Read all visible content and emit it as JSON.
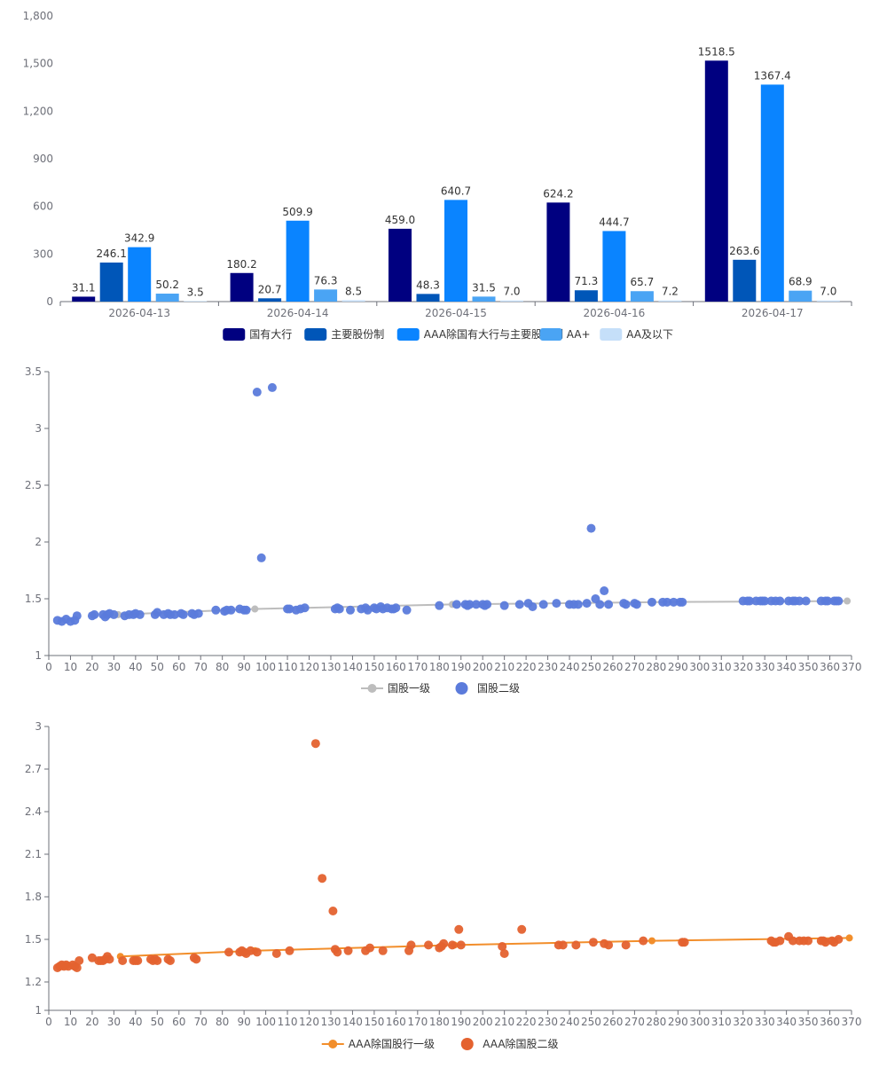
{
  "chart_data": [
    {
      "type": "bar",
      "title": "",
      "categories": [
        "2026-04-13",
        "2026-04-14",
        "2026-04-15",
        "2026-04-16",
        "2026-04-17"
      ],
      "ylim": [
        0,
        1800
      ],
      "yticks": [
        0,
        300,
        600,
        900,
        1200,
        1500,
        1800
      ],
      "ytick_labels": [
        "0",
        "300",
        "600",
        "900",
        "1,200",
        "1,500",
        "1,800"
      ],
      "legend_position": "bottom",
      "series": [
        {
          "name": "国有大行",
          "color": "#000080",
          "values": [
            31.1,
            180.2,
            459.0,
            624.2,
            1518.5
          ],
          "labels": [
            "31.1",
            "180.2",
            "459.0",
            "624.2",
            "1518.5"
          ]
        },
        {
          "name": "主要股份制",
          "color": "#0056b8",
          "values": [
            246.1,
            20.7,
            48.3,
            71.3,
            263.6
          ],
          "labels": [
            "246.1",
            "20.7",
            "48.3",
            "71.3",
            "263.6"
          ]
        },
        {
          "name": "AAA除国有大行与主要股份制",
          "color": "#0a84ff",
          "values": [
            342.9,
            509.9,
            640.7,
            444.7,
            1367.4
          ],
          "labels": [
            "342.9",
            "509.9",
            "640.7",
            "444.7",
            "1367.4"
          ]
        },
        {
          "name": "AA+",
          "color": "#4aa4f4",
          "values": [
            50.2,
            76.3,
            31.5,
            65.7,
            68.9
          ],
          "labels": [
            "50.2",
            "76.3",
            "31.5",
            "65.7",
            "68.9"
          ]
        },
        {
          "name": "AA及以下",
          "color": "#c5dff9",
          "values": [
            3.5,
            8.5,
            7.0,
            7.2,
            7.0
          ],
          "labels": [
            "3.5",
            "8.5",
            "7.0",
            "7.2",
            "7.0"
          ]
        }
      ]
    },
    {
      "type": "scatter",
      "xlim": [
        0,
        370
      ],
      "ylim": [
        1,
        3.5
      ],
      "xticks": [
        0,
        10,
        20,
        30,
        40,
        50,
        60,
        70,
        80,
        90,
        100,
        110,
        120,
        130,
        140,
        150,
        160,
        170,
        180,
        190,
        200,
        210,
        220,
        230,
        240,
        250,
        260,
        270,
        280,
        290,
        300,
        310,
        320,
        330,
        340,
        350,
        360,
        370
      ],
      "yticks": [
        1,
        1.5,
        2,
        2.5,
        3,
        3.5
      ],
      "ytick_labels": [
        "1",
        "1.5",
        "2",
        "2.5",
        "3",
        "3.5"
      ],
      "legend_position": "bottom",
      "series": [
        {
          "name": "国股一级",
          "kind": "line",
          "color": "#bdbdbd",
          "x": [
            32,
            95,
            186,
            278,
            368
          ],
          "y": [
            1.36,
            1.41,
            1.45,
            1.47,
            1.48
          ]
        },
        {
          "name": "国股二级",
          "kind": "scatter",
          "color": "#5b7bdb",
          "x": [
            4,
            6,
            8,
            10,
            12,
            13,
            20,
            21,
            25,
            26,
            27,
            28,
            30,
            35,
            37,
            39,
            40,
            42,
            49,
            50,
            53,
            55,
            56,
            58,
            61,
            62,
            66,
            67,
            69,
            77,
            81,
            82,
            84,
            88,
            90,
            91,
            96,
            98,
            103,
            110,
            111,
            114,
            116,
            118,
            132,
            133,
            134,
            139,
            144,
            146,
            147,
            150,
            151,
            153,
            154,
            156,
            158,
            159,
            160,
            165,
            180,
            188,
            192,
            193,
            194,
            197,
            200,
            201,
            202,
            210,
            217,
            221,
            223,
            228,
            234,
            240,
            242,
            244,
            248,
            250,
            252,
            254,
            256,
            258,
            265,
            266,
            270,
            271,
            278,
            283,
            285,
            288,
            291,
            292,
            320,
            322,
            323,
            326,
            328,
            329,
            330,
            333,
            335,
            337,
            341,
            343,
            344,
            346,
            349,
            356,
            358,
            359,
            362,
            363,
            364
          ],
          "y": [
            1.31,
            1.3,
            1.32,
            1.3,
            1.31,
            1.35,
            1.35,
            1.36,
            1.36,
            1.34,
            1.36,
            1.37,
            1.36,
            1.35,
            1.36,
            1.36,
            1.37,
            1.36,
            1.36,
            1.38,
            1.36,
            1.37,
            1.36,
            1.36,
            1.37,
            1.36,
            1.37,
            1.36,
            1.37,
            1.4,
            1.39,
            1.4,
            1.4,
            1.41,
            1.4,
            1.4,
            3.32,
            1.86,
            3.36,
            1.41,
            1.41,
            1.4,
            1.41,
            1.42,
            1.41,
            1.42,
            1.41,
            1.4,
            1.41,
            1.42,
            1.4,
            1.42,
            1.41,
            1.43,
            1.41,
            1.42,
            1.41,
            1.41,
            1.42,
            1.4,
            1.44,
            1.45,
            1.45,
            1.44,
            1.45,
            1.45,
            1.45,
            1.44,
            1.45,
            1.44,
            1.45,
            1.46,
            1.43,
            1.45,
            1.46,
            1.45,
            1.45,
            1.45,
            1.46,
            2.12,
            1.5,
            1.45,
            1.57,
            1.45,
            1.46,
            1.45,
            1.46,
            1.45,
            1.47,
            1.47,
            1.47,
            1.47,
            1.47,
            1.47,
            1.48,
            1.48,
            1.48,
            1.48,
            1.48,
            1.48,
            1.48,
            1.48,
            1.48,
            1.48,
            1.48,
            1.48,
            1.48,
            1.48,
            1.48,
            1.48,
            1.48,
            1.48,
            1.48,
            1.48,
            1.48
          ]
        }
      ]
    },
    {
      "type": "scatter",
      "xlim": [
        0,
        370
      ],
      "ylim": [
        1,
        3
      ],
      "xticks": [
        0,
        10,
        20,
        30,
        40,
        50,
        60,
        70,
        80,
        90,
        100,
        110,
        120,
        130,
        140,
        150,
        160,
        170,
        180,
        190,
        200,
        210,
        220,
        230,
        240,
        250,
        260,
        270,
        280,
        290,
        300,
        310,
        320,
        330,
        340,
        350,
        360,
        370
      ],
      "yticks": [
        1,
        1.2,
        1.5,
        1.8,
        2.1,
        2.4,
        2.7,
        3
      ],
      "ytick_labels": [
        "1",
        "1.2",
        "1.5",
        "1.8",
        "2.1",
        "2.4",
        "2.7",
        "3"
      ],
      "legend_position": "bottom",
      "series": [
        {
          "name": "AAA除国股行一级",
          "kind": "line",
          "color": "#f28e2b",
          "x": [
            33,
            95,
            187,
            278,
            369
          ],
          "y": [
            1.38,
            1.42,
            1.46,
            1.49,
            1.51
          ]
        },
        {
          "name": "AAA除国股二级",
          "kind": "scatter",
          "color": "#e4622f",
          "x": [
            4,
            5,
            6,
            7,
            8,
            9,
            11,
            12,
            13,
            14,
            20,
            23,
            24,
            25,
            26,
            27,
            28,
            34,
            39,
            40,
            41,
            47,
            48,
            49,
            50,
            55,
            56,
            67,
            68,
            83,
            88,
            89,
            90,
            91,
            93,
            96,
            105,
            111,
            123,
            126,
            131,
            132,
            133,
            138,
            146,
            148,
            154,
            166,
            167,
            175,
            180,
            181,
            182,
            186,
            189,
            190,
            209,
            210,
            218,
            235,
            237,
            243,
            251,
            256,
            258,
            266,
            274,
            292,
            293,
            333,
            334,
            335,
            337,
            341,
            343,
            346,
            348,
            350,
            356,
            357,
            358,
            361,
            362,
            364
          ],
          "y": [
            1.3,
            1.31,
            1.32,
            1.31,
            1.32,
            1.31,
            1.32,
            1.31,
            1.3,
            1.35,
            1.37,
            1.35,
            1.35,
            1.35,
            1.36,
            1.38,
            1.36,
            1.35,
            1.35,
            1.35,
            1.35,
            1.36,
            1.35,
            1.36,
            1.35,
            1.36,
            1.35,
            1.37,
            1.36,
            1.41,
            1.41,
            1.42,
            1.41,
            1.4,
            1.42,
            1.41,
            1.4,
            1.42,
            2.88,
            1.93,
            1.7,
            1.43,
            1.41,
            1.42,
            1.42,
            1.44,
            1.42,
            1.42,
            1.46,
            1.46,
            1.44,
            1.45,
            1.47,
            1.46,
            1.57,
            1.46,
            1.45,
            1.4,
            1.57,
            1.46,
            1.46,
            1.46,
            1.48,
            1.47,
            1.46,
            1.46,
            1.49,
            1.48,
            1.48,
            1.49,
            1.48,
            1.48,
            1.49,
            1.52,
            1.49,
            1.49,
            1.49,
            1.49,
            1.49,
            1.49,
            1.48,
            1.49,
            1.48,
            1.5
          ]
        }
      ]
    }
  ]
}
